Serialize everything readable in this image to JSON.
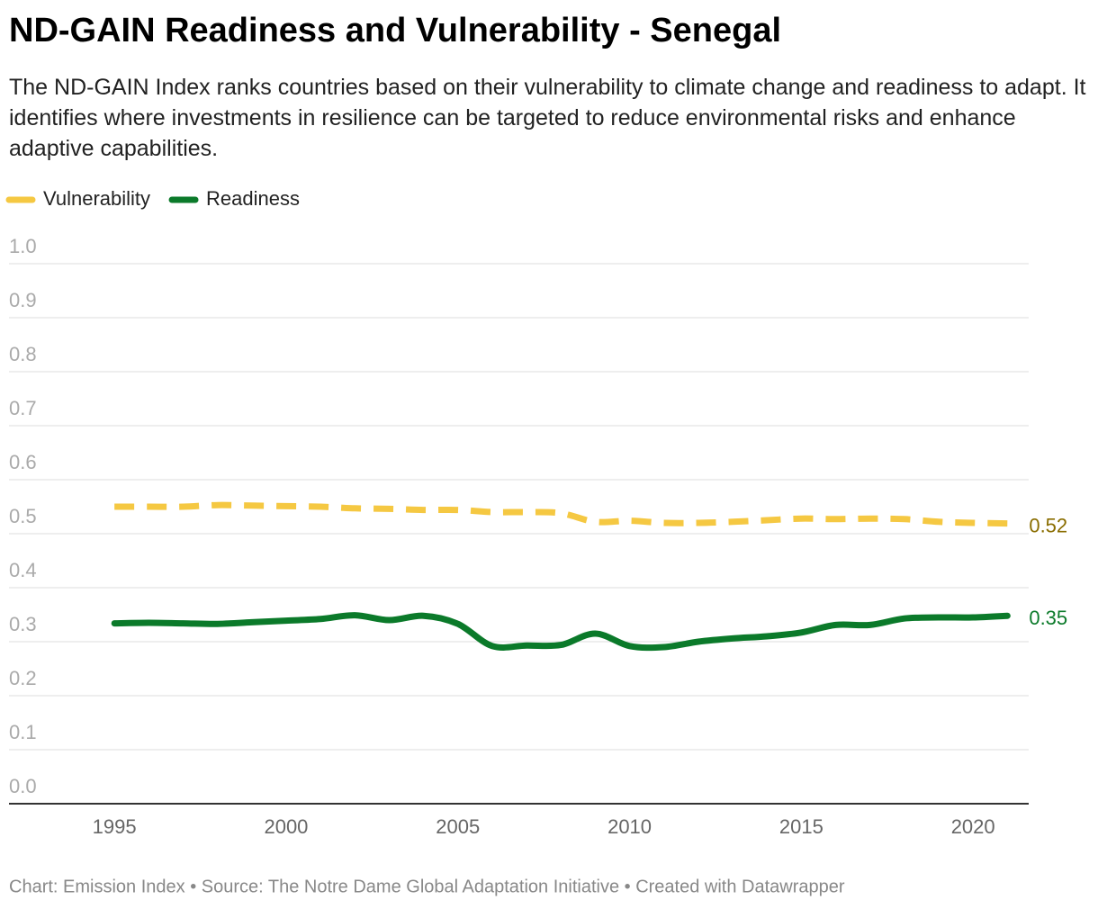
{
  "chart_data": {
    "type": "line",
    "title": "ND-GAIN Readiness and Vulnerability - Senegal",
    "subtitle": "The ND-GAIN Index ranks countries based on their vulnerability to climate change and readiness to adapt. It identifies where investments in resilience can be targeted to reduce environmental risks and enhance adaptive capabilities.",
    "footer": "Chart: Emission Index • Source: The Notre Dame Global Adaptation Initiative • Created with Datawrapper",
    "x": [
      1995,
      1996,
      1997,
      1998,
      1999,
      2000,
      2001,
      2002,
      2003,
      2004,
      2005,
      2006,
      2007,
      2008,
      2009,
      2010,
      2011,
      2012,
      2013,
      2014,
      2015,
      2016,
      2017,
      2018,
      2019,
      2020,
      2021
    ],
    "series": [
      {
        "name": "Vulnerability",
        "color": "#f5c842",
        "label_color": "#8a6d00",
        "dashed": true,
        "values": [
          0.55,
          0.55,
          0.55,
          0.553,
          0.552,
          0.551,
          0.55,
          0.547,
          0.546,
          0.544,
          0.544,
          0.54,
          0.54,
          0.538,
          0.522,
          0.524,
          0.52,
          0.52,
          0.522,
          0.525,
          0.528,
          0.527,
          0.528,
          0.527,
          0.522,
          0.52,
          0.519
        ],
        "value_labels": [
          null,
          null,
          null,
          null,
          null,
          null,
          null,
          null,
          null,
          null,
          null,
          null,
          null,
          null,
          null,
          null,
          null,
          null,
          null,
          null,
          null,
          null,
          null,
          null,
          null,
          null,
          "0.52"
        ]
      },
      {
        "name": "Readiness",
        "color": "#0b7a2a",
        "label_color": "#0b7a2a",
        "dashed": false,
        "values": [
          0.334,
          0.335,
          0.334,
          0.333,
          0.336,
          0.339,
          0.342,
          0.349,
          0.34,
          0.348,
          0.333,
          0.292,
          0.293,
          0.294,
          0.315,
          0.292,
          0.29,
          0.3,
          0.306,
          0.31,
          0.317,
          0.331,
          0.331,
          0.343,
          0.345,
          0.345,
          0.348
        ],
        "value_labels": [
          null,
          null,
          null,
          null,
          null,
          null,
          null,
          null,
          null,
          null,
          null,
          null,
          null,
          null,
          null,
          null,
          null,
          null,
          null,
          null,
          null,
          null,
          null,
          null,
          null,
          null,
          "0.35"
        ]
      }
    ],
    "xlim": [
      1991.93,
      2021.62
    ],
    "xticks": [
      1995,
      2000,
      2005,
      2010,
      2015,
      2020
    ],
    "ylim": [
      0,
      1
    ],
    "yticks": [
      {
        "value": 0,
        "label": "0.0"
      },
      0.1,
      0.2,
      0.3,
      0.4,
      0.5,
      0.6,
      0.7,
      0.8,
      0.9,
      {
        "value": 1,
        "label": "1.0"
      }
    ],
    "grid": true
  }
}
